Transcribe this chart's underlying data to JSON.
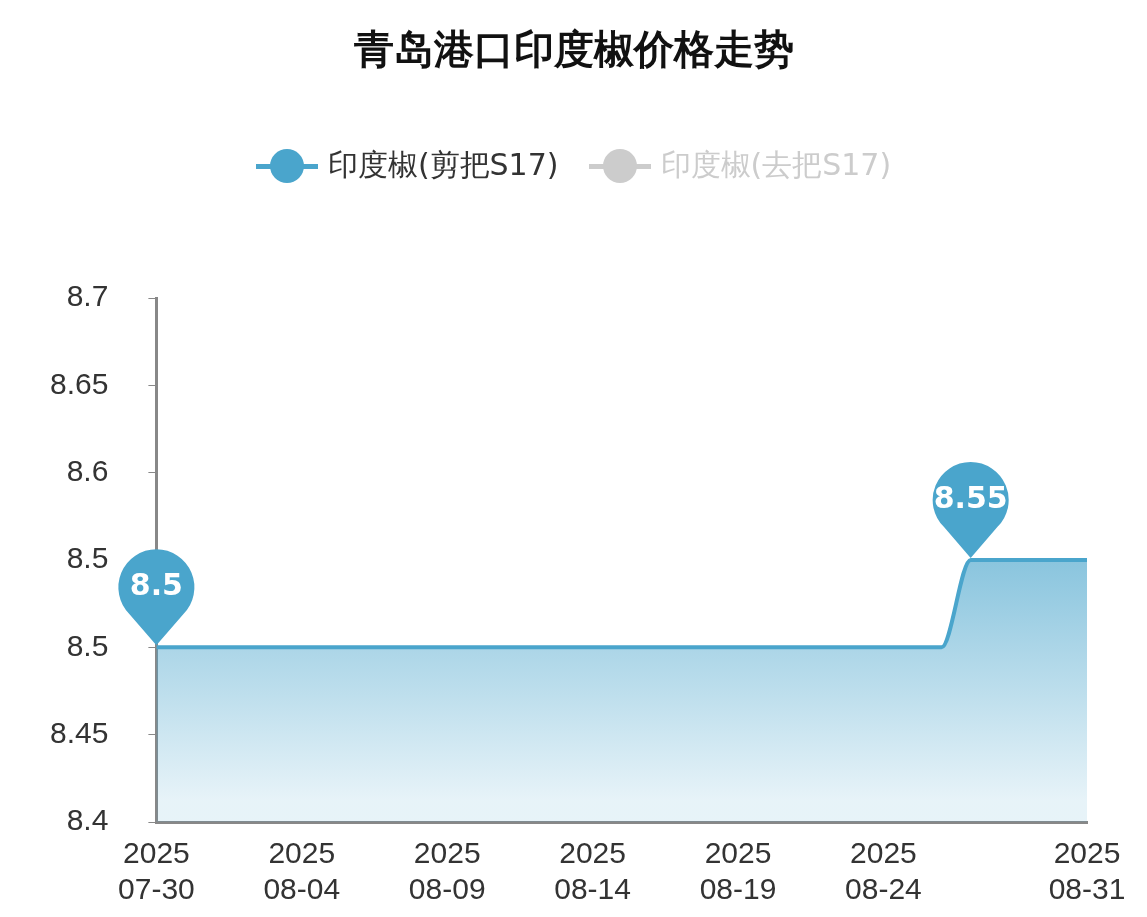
{
  "chart_data": {
    "type": "area",
    "title": "青岛港口印度椒价格走势",
    "legend": "top",
    "grid": false,
    "marker": "none",
    "line_style": "solid",
    "x": [
      "2025-07-30",
      "2025-08-26",
      "2025-08-27",
      "2025-08-31"
    ],
    "series": [
      {
        "name": "印度椒(剪把S17)",
        "color": "#4aa5cc",
        "values": [
          8.5,
          8.5,
          8.55,
          8.55
        ],
        "value_labels": [
          "8.5",
          null,
          "8.55",
          null
        ]
      },
      {
        "name": "印度椒(去把S17)",
        "color": "#cccccc",
        "values": [
          null,
          null,
          null,
          null
        ]
      }
    ],
    "xlim": [
      "2025-07-30",
      "2025-08-31"
    ],
    "xticks": [
      {
        "value": "2025-07-30",
        "label": "2025\n07-30"
      },
      {
        "value": "2025-08-04",
        "label": "2025\n08-04"
      },
      {
        "value": "2025-08-09",
        "label": "2025\n08-09"
      },
      {
        "value": "2025-08-14",
        "label": "2025\n08-14"
      },
      {
        "value": "2025-08-19",
        "label": "2025\n08-19"
      },
      {
        "value": "2025-08-24",
        "label": "2025\n08-24"
      },
      {
        "value": "2025-08-31",
        "label": "2025\n08-31"
      }
    ],
    "ylim": [
      8.4,
      8.7
    ],
    "yticks": [
      8.4,
      8.45,
      8.5,
      {
        "value": 8.55,
        "label": "8.5"
      },
      8.6,
      8.65,
      8.7
    ]
  }
}
